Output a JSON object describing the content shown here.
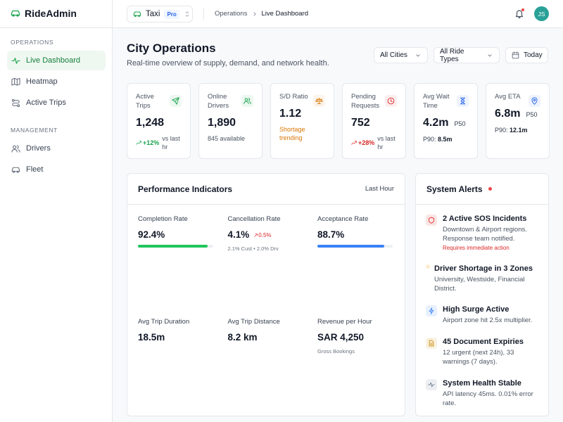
{
  "sidebar": {
    "brand": "RideAdmin",
    "sections": [
      {
        "title": "OPERATIONS",
        "items": [
          "Live Dashboard",
          "Heatmap",
          "Active Trips"
        ]
      },
      {
        "title": "MANAGEMENT",
        "items": [
          "Drivers",
          "Fleet"
        ]
      }
    ]
  },
  "topbar": {
    "service": "Taxi",
    "badge": "Pro",
    "breadcrumb": [
      "Operations",
      "Live Dashboard"
    ],
    "avatar": "JS"
  },
  "header": {
    "title": "City Operations",
    "subtitle": "Real-time overview of supply, demand, and network health.",
    "filters": [
      "All Cities",
      "All Ride Types",
      "Today"
    ]
  },
  "kpis": [
    {
      "label": "Active Trips",
      "value": "1,248",
      "change": "+12%",
      "note": "vs last hr",
      "color": "#16a34a"
    },
    {
      "label": "Online Drivers",
      "value": "1,890",
      "note": "845 available",
      "color": "#16a34a"
    },
    {
      "label": "S/D Ratio",
      "value": "1.12",
      "note": "Shortage trending",
      "color": "#d97706"
    },
    {
      "label": "Pending Requests",
      "value": "752",
      "change": "+28%",
      "note": "vs last hr",
      "color": "#dc2626"
    },
    {
      "label": "Avg Wait Time",
      "value": "4.2m",
      "suffix": "P50",
      "p90_label": "P90:",
      "p90": "8.5m",
      "color": "#2563eb"
    },
    {
      "label": "Avg ETA",
      "value": "6.8m",
      "suffix": "P50",
      "p90_label": "P90:",
      "p90": "12.1m",
      "color": "#2563eb"
    }
  ],
  "performance": {
    "title": "Performance Indicators",
    "period": "Last Hour",
    "metrics": [
      {
        "label": "Completion Rate",
        "value": "92.4%",
        "percent": 92.4,
        "color": "#22c55e"
      },
      {
        "label": "Cancellation Rate",
        "value": "4.1%",
        "change": "0.5%",
        "note": "2.1% Cust • 2.0% Drv"
      },
      {
        "label": "Acceptance Rate",
        "value": "88.7%",
        "percent": 88.7,
        "color": "#3b82f6"
      },
      {
        "label": "Avg Trip Duration",
        "value": "18.5m"
      },
      {
        "label": "Avg Trip Distance",
        "value": "8.2 km"
      },
      {
        "label": "Revenue per Hour",
        "value": "SAR 4,250",
        "note": "Gross Bookings"
      }
    ]
  },
  "alerts": {
    "title": "System Alerts",
    "items": [
      {
        "title": "2 Active SOS Incidents",
        "text": "Downtown & Airport regions. Response team notified.",
        "action": "Requires immediate action",
        "color": "#dc2626"
      },
      {
        "title": "Driver Shortage in 3 Zones",
        "text": "University, Westside, Financial District.",
        "color": "#f59e0b"
      },
      {
        "title": "High Surge Active",
        "text": "Airport zone hit 2.5x multiplier.",
        "color": "#3b82f6"
      },
      {
        "title": "45 Document Expiries",
        "text": "12 urgent (next 24h), 33 warnings (7 days).",
        "color": "#ca8a04"
      },
      {
        "title": "System Health Stable",
        "text": "API latency 45ms. 0.01% error rate.",
        "color": "#64748b"
      }
    ]
  }
}
